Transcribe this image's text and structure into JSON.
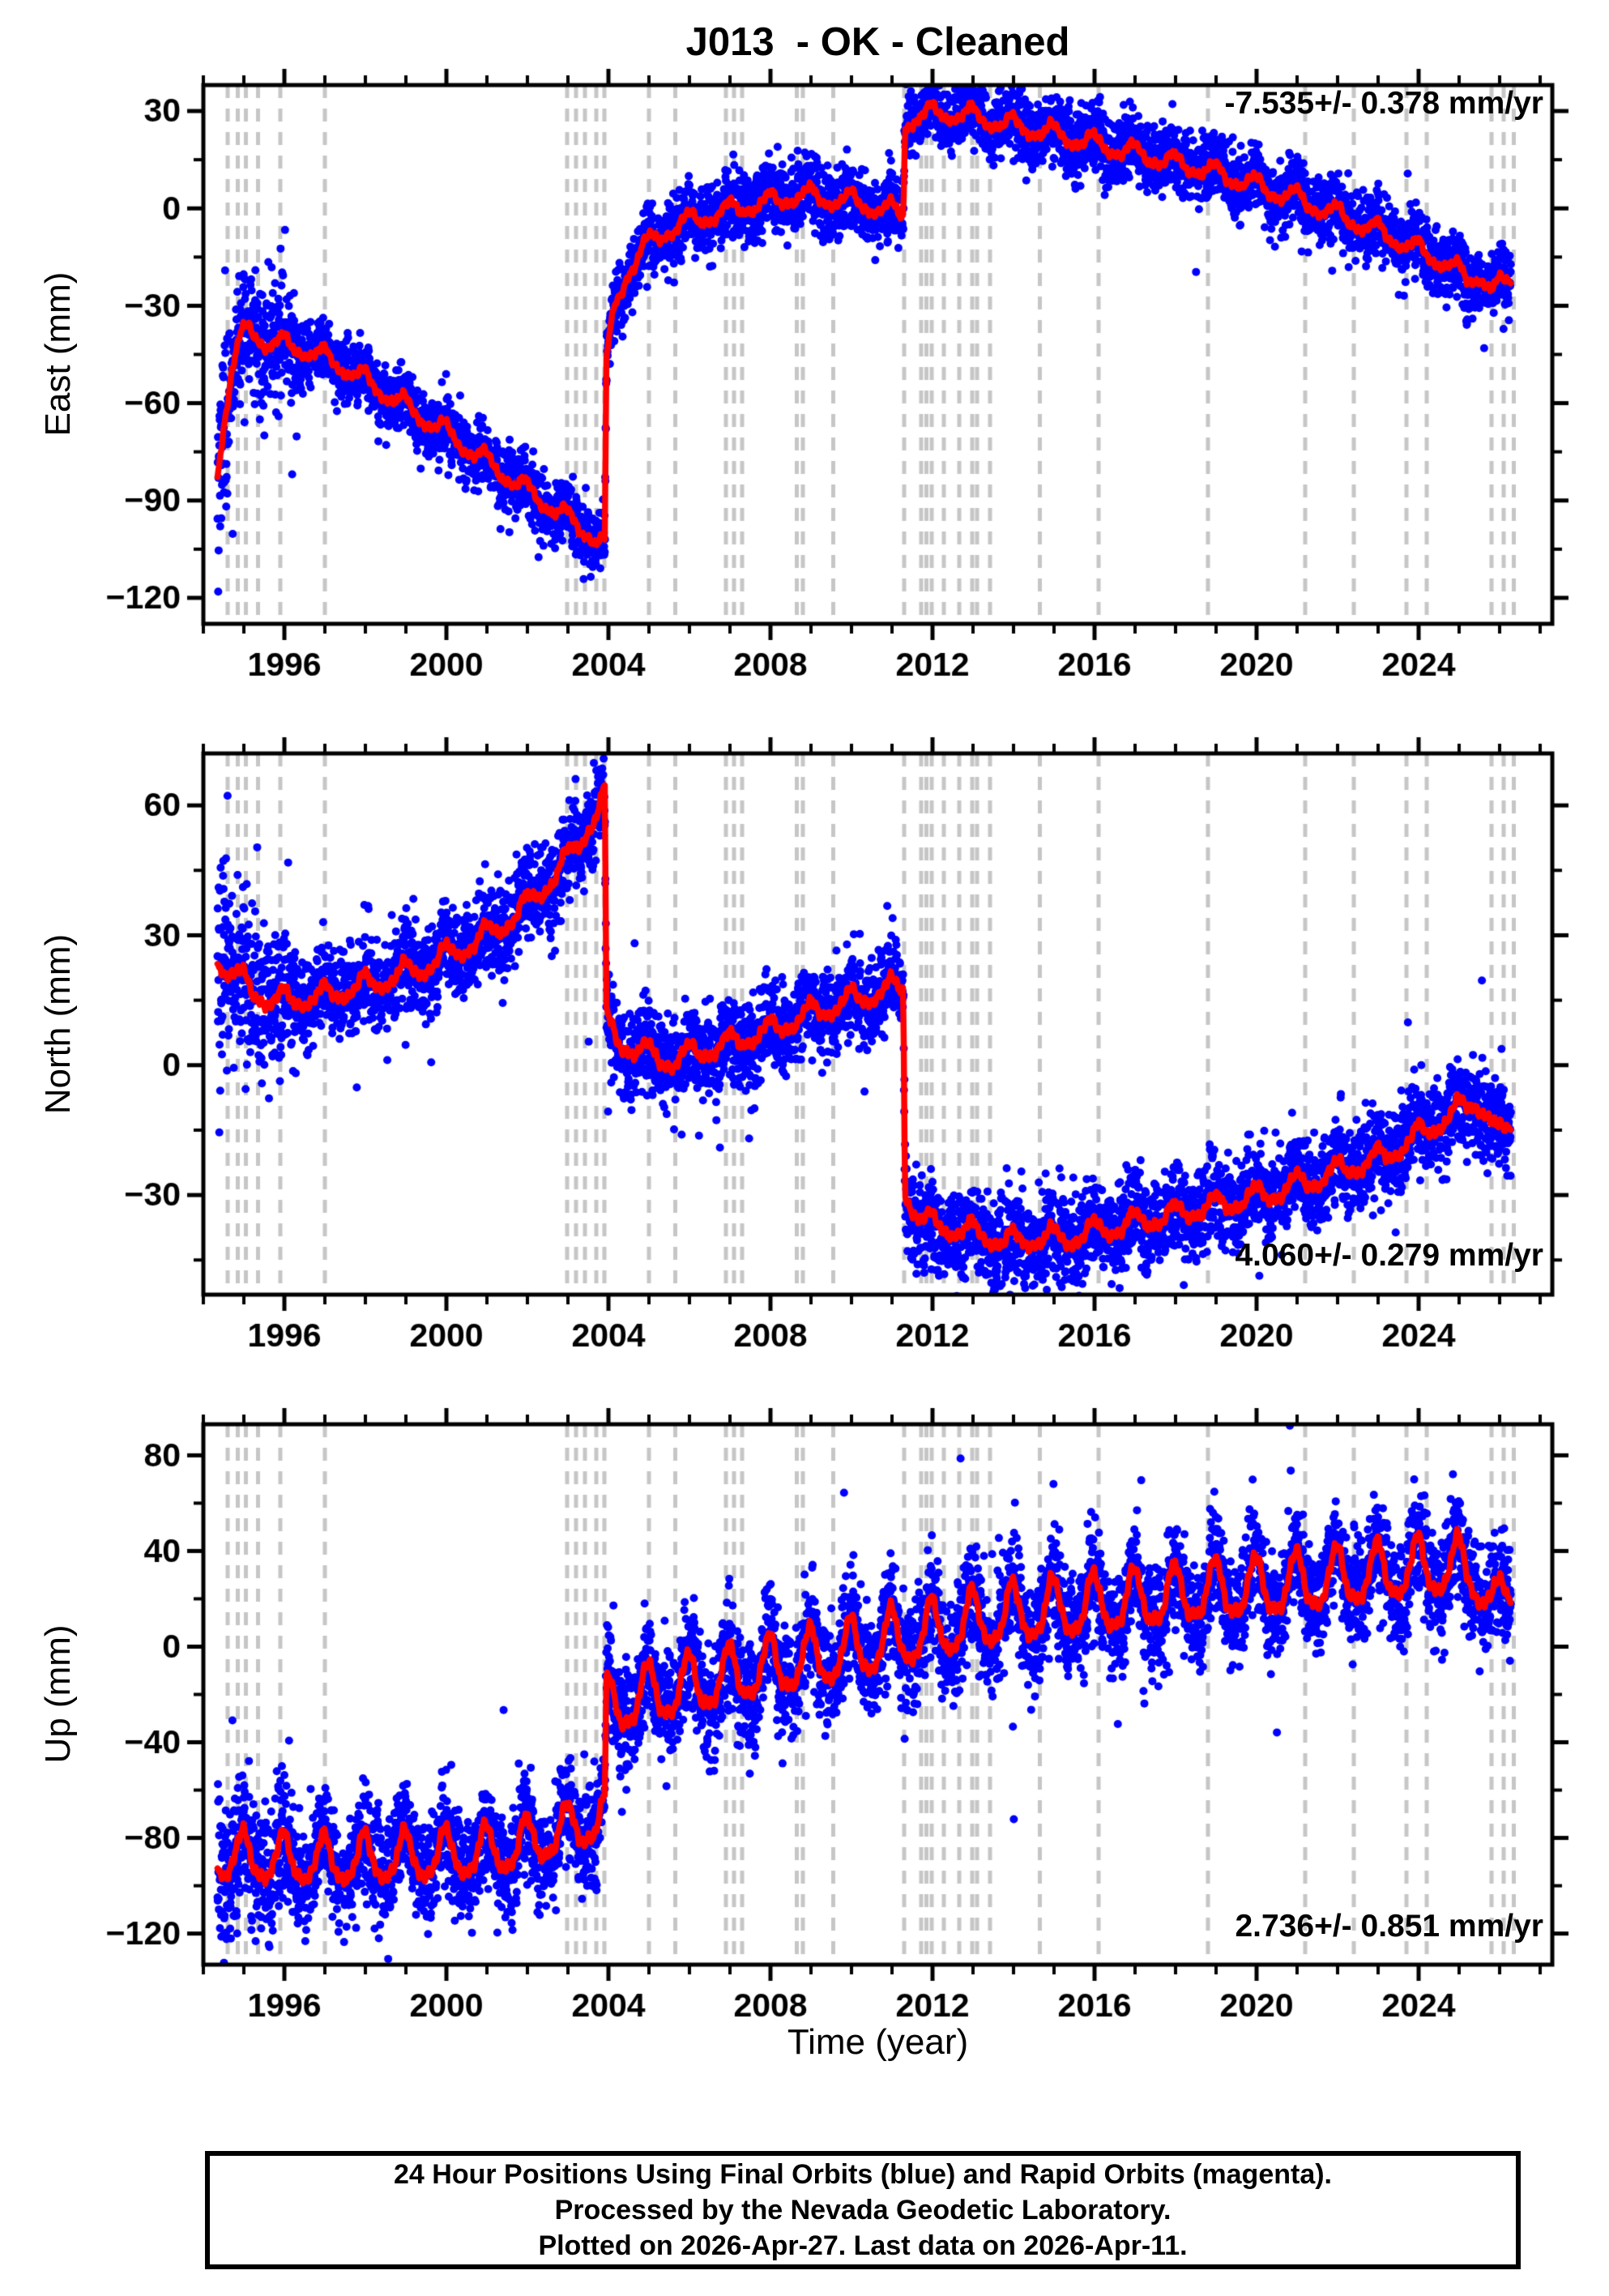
{
  "title": "J013  - OK - Cleaned",
  "station": "J013",
  "state": "OK",
  "series_type": "Cleaned",
  "time_axis": {
    "label": "Time (year)",
    "xlim": [
      1994.0,
      2027.3
    ],
    "major_ticks": [
      1996,
      2000,
      2004,
      2008,
      2012,
      2016,
      2020,
      2024
    ],
    "minor_step": 1
  },
  "colors": {
    "final_orbits_blue": "#0000ff",
    "rapid_orbits_magenta": "#ff00ff",
    "trend_red": "#ff0000",
    "event_line_gray": "#c6c6c6",
    "frame_black": "#000000",
    "background": "#ffffff",
    "text": "#000000"
  },
  "event_lines_years": [
    1994.6,
    1994.85,
    1995.05,
    1995.35,
    1995.9,
    1997.0,
    2002.98,
    2003.2,
    2003.42,
    2003.7,
    2003.9,
    2005.0,
    2005.65,
    2006.9,
    2007.1,
    2007.3,
    2008.65,
    2008.8,
    2009.55,
    2011.3,
    2011.72,
    2011.85,
    2011.98,
    2012.28,
    2012.66,
    2012.98,
    2013.1,
    2013.42,
    2014.65,
    2016.1,
    2018.8,
    2021.2,
    2022.4,
    2023.7,
    2024.2,
    2025.8,
    2026.1,
    2026.35
  ],
  "chart_data": [
    {
      "type": "scatter",
      "component": "East",
      "ylabel": "East (mm)",
      "annotation": "-7.535+/- 0.378 mm/yr",
      "annotation_pos": "top-right",
      "rate_mm_per_yr": -7.535,
      "rate_uncertainty_mm_per_yr": 0.378,
      "ylim": [
        -128,
        38
      ],
      "yticks": [
        30,
        0,
        -30,
        -60,
        -90,
        -120
      ],
      "y_minor_step": 15,
      "x_start": 1994.35,
      "x_end": 2026.28,
      "seasonal_amp": 3.2,
      "seasonal_amp_late": 3.2,
      "jag_amp": 1.6,
      "noise_sigma": 5,
      "early_sigma_mult": 1.7,
      "start_sigma_mult": 2.2,
      "trend_anchors": [
        [
          1994.35,
          -82
        ],
        [
          1994.5,
          -66
        ],
        [
          1994.7,
          -50
        ],
        [
          1994.9,
          -41
        ],
        [
          1995.15,
          -37
        ],
        [
          1995.5,
          -41
        ],
        [
          1996.0,
          -42
        ],
        [
          1996.6,
          -44
        ],
        [
          1997.2,
          -47
        ],
        [
          1998.0,
          -53
        ],
        [
          1999.0,
          -61
        ],
        [
          2000.0,
          -69
        ],
        [
          2001.0,
          -78
        ],
        [
          2002.0,
          -87
        ],
        [
          2002.7,
          -93
        ],
        [
          2003.4,
          -99
        ],
        [
          2003.91,
          -104
        ],
        [
          2003.95,
          -50
        ],
        [
          2004.05,
          -38
        ],
        [
          2004.2,
          -28
        ],
        [
          2004.5,
          -19
        ],
        [
          2004.9,
          -12
        ],
        [
          2005.4,
          -7
        ],
        [
          2006.0,
          -4
        ],
        [
          2006.6,
          -2
        ],
        [
          2007.2,
          0
        ],
        [
          2008.0,
          2
        ],
        [
          2008.7,
          4
        ],
        [
          2009.4,
          3
        ],
        [
          2010.1,
          2
        ],
        [
          2010.7,
          0
        ],
        [
          2011.28,
          -2
        ],
        [
          2011.32,
          26
        ],
        [
          2011.7,
          29
        ],
        [
          2012.2,
          29
        ],
        [
          2012.8,
          29
        ],
        [
          2013.4,
          27
        ],
        [
          2014.2,
          25
        ],
        [
          2015.0,
          23
        ],
        [
          2016.0,
          20
        ],
        [
          2017.0,
          17
        ],
        [
          2018.0,
          14
        ],
        [
          2019.0,
          11
        ],
        [
          2020.0,
          7
        ],
        [
          2021.0,
          3
        ],
        [
          2022.0,
          -2
        ],
        [
          2023.0,
          -7
        ],
        [
          2024.0,
          -13
        ],
        [
          2024.7,
          -17
        ],
        [
          2025.2,
          -22
        ],
        [
          2025.5,
          -20
        ],
        [
          2025.85,
          -26
        ],
        [
          2026.1,
          -23
        ],
        [
          2026.28,
          -21
        ]
      ]
    },
    {
      "type": "scatter",
      "component": "North",
      "ylabel": "North (mm)",
      "annotation": "4.060+/- 0.279 mm/yr",
      "annotation_pos": "bottom-right",
      "rate_mm_per_yr": 4.06,
      "rate_uncertainty_mm_per_yr": 0.279,
      "ylim": [
        -53,
        72
      ],
      "yticks": [
        60,
        30,
        0,
        -30
      ],
      "y_minor_step": 15,
      "x_start": 1994.35,
      "x_end": 2026.28,
      "seasonal_amp": 2.8,
      "seasonal_amp_late": 2.8,
      "jag_amp": 1.5,
      "noise_sigma": 5,
      "early_sigma_mult": 1.7,
      "start_sigma_mult": 1.8,
      "trend_anchors": [
        [
          1994.35,
          24
        ],
        [
          1994.8,
          21
        ],
        [
          1995.2,
          17
        ],
        [
          1995.7,
          15
        ],
        [
          1996.3,
          15
        ],
        [
          1997.0,
          16
        ],
        [
          1997.8,
          18
        ],
        [
          1998.6,
          20
        ],
        [
          1999.5,
          23
        ],
        [
          2000.4,
          27
        ],
        [
          2001.2,
          31
        ],
        [
          2002.0,
          37
        ],
        [
          2002.6,
          43
        ],
        [
          2003.1,
          49
        ],
        [
          2003.5,
          55
        ],
        [
          2003.8,
          60
        ],
        [
          2003.91,
          63
        ],
        [
          2003.95,
          10
        ],
        [
          2004.2,
          6
        ],
        [
          2004.6,
          4
        ],
        [
          2005.1,
          2
        ],
        [
          2005.6,
          1
        ],
        [
          2006.2,
          3
        ],
        [
          2007.0,
          5
        ],
        [
          2008.0,
          8
        ],
        [
          2009.0,
          12
        ],
        [
          2010.0,
          15
        ],
        [
          2010.7,
          17
        ],
        [
          2011.28,
          18
        ],
        [
          2011.32,
          -29
        ],
        [
          2011.6,
          -34
        ],
        [
          2012.0,
          -37
        ],
        [
          2012.6,
          -38
        ],
        [
          2013.2,
          -39
        ],
        [
          2013.8,
          -41
        ],
        [
          2014.5,
          -40
        ],
        [
          2015.3,
          -40
        ],
        [
          2016.2,
          -38
        ],
        [
          2017.2,
          -36
        ],
        [
          2018.2,
          -34
        ],
        [
          2019.2,
          -32
        ],
        [
          2020.2,
          -30
        ],
        [
          2021.2,
          -27
        ],
        [
          2022.2,
          -24
        ],
        [
          2023.2,
          -21
        ],
        [
          2024.2,
          -15
        ],
        [
          2024.9,
          -11
        ],
        [
          2025.4,
          -8
        ],
        [
          2025.7,
          -11
        ],
        [
          2025.95,
          -17
        ],
        [
          2026.15,
          -15
        ],
        [
          2026.28,
          -13
        ]
      ]
    },
    {
      "type": "scatter",
      "component": "Up",
      "ylabel": "Up (mm)",
      "annotation": "2.736+/- 0.851 mm/yr",
      "annotation_pos": "bottom-right",
      "rate_mm_per_yr": 2.736,
      "rate_uncertainty_mm_per_yr": 0.851,
      "ylim": [
        -133,
        93
      ],
      "yticks": [
        80,
        40,
        0,
        -40,
        -80,
        -120
      ],
      "y_minor_step": 20,
      "x_start": 1994.35,
      "x_end": 2026.28,
      "seasonal_amp": 12,
      "seasonal_amp_late": 14.5,
      "jag_amp": 3.2,
      "noise_sigma": 11,
      "early_sigma_mult": 1.35,
      "start_sigma_mult": 1.3,
      "trend_anchors": [
        [
          1994.35,
          -88
        ],
        [
          1995.5,
          -89
        ],
        [
          1996.5,
          -90
        ],
        [
          1997.5,
          -90
        ],
        [
          1998.5,
          -89
        ],
        [
          1999.5,
          -88
        ],
        [
          2000.5,
          -87
        ],
        [
          2001.5,
          -85
        ],
        [
          2002.3,
          -81
        ],
        [
          2003.0,
          -77
        ],
        [
          2003.6,
          -73
        ],
        [
          2003.91,
          -71
        ],
        [
          2003.95,
          -26
        ],
        [
          2004.6,
          -22
        ],
        [
          2005.4,
          -19
        ],
        [
          2006.2,
          -16
        ],
        [
          2007.0,
          -13
        ],
        [
          2008.0,
          -9
        ],
        [
          2009.0,
          -6
        ],
        [
          2010.0,
          -2
        ],
        [
          2011.0,
          2
        ],
        [
          2012.0,
          6
        ],
        [
          2013.0,
          10
        ],
        [
          2014.0,
          13
        ],
        [
          2015.0,
          15
        ],
        [
          2016.0,
          17
        ],
        [
          2017.0,
          19
        ],
        [
          2018.0,
          21
        ],
        [
          2019.0,
          23
        ],
        [
          2020.0,
          24
        ],
        [
          2021.0,
          26
        ],
        [
          2022.0,
          28
        ],
        [
          2023.0,
          30
        ],
        [
          2024.0,
          32
        ],
        [
          2024.7,
          33
        ],
        [
          2025.3,
          31
        ],
        [
          2025.7,
          24
        ],
        [
          2025.95,
          12
        ],
        [
          2026.1,
          18
        ],
        [
          2026.28,
          26
        ]
      ]
    }
  ],
  "footer": {
    "lines": [
      "24 Hour Positions Using Final Orbits (blue) and Rapid Orbits (magenta).",
      "Processed by the Nevada Geodetic Laboratory.",
      "Plotted on 2026-Apr-27. Last data on 2026-Apr-11."
    ]
  }
}
